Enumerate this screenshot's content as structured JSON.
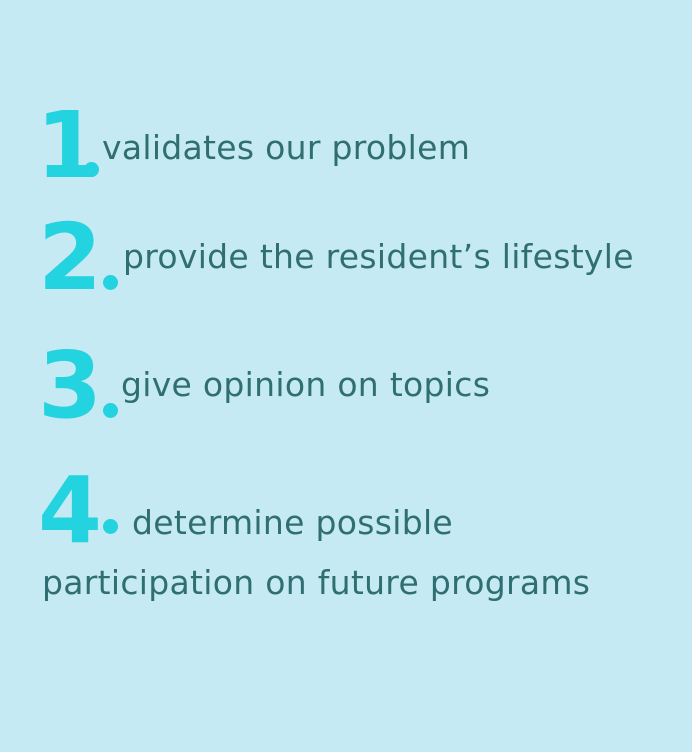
{
  "colors": {
    "background": "#c6eaf3",
    "number": "#23d3df",
    "text": "#2f6f73"
  },
  "items": [
    {
      "number": "1",
      "text": "validates our problem"
    },
    {
      "number": "2",
      "text": "provide the resident’s lifestyle"
    },
    {
      "number": "3",
      "text": "give opinion on topics"
    },
    {
      "number": "4",
      "text": "determine possible",
      "text_continued": "participation on future programs"
    }
  ]
}
